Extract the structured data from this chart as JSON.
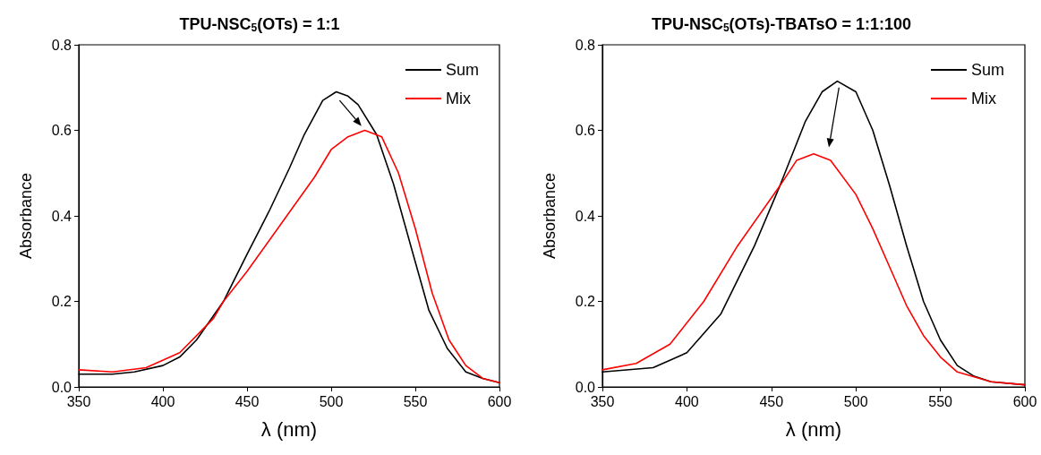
{
  "chart_data": [
    {
      "type": "line",
      "title": "TPU-NSC$_{5}$(OTs) = 1:1",
      "xlabel": "λ (nm)",
      "ylabel": "Absorbance",
      "xlim": [
        350,
        600
      ],
      "xticks": [
        350,
        400,
        450,
        500,
        550,
        600
      ],
      "ylim": [
        0,
        0.8
      ],
      "yticks": [
        {
          "value": 0,
          "label": "0.0"
        },
        0.2,
        0.4,
        0.6,
        0.8
      ],
      "grid": false,
      "legend": "top right",
      "marker": "none",
      "line_style": "solid",
      "series": [
        {
          "name": "Sum",
          "color": "#000000",
          "x": [
            350,
            370,
            383,
            400,
            410,
            420,
            436,
            450,
            463,
            475,
            484,
            495,
            503,
            510,
            516,
            527,
            537,
            548,
            558,
            569,
            580,
            590,
            600
          ],
          "values": [
            0.03,
            0.03,
            0.035,
            0.05,
            0.07,
            0.11,
            0.2,
            0.31,
            0.41,
            0.51,
            0.59,
            0.67,
            0.69,
            0.68,
            0.66,
            0.59,
            0.475,
            0.32,
            0.18,
            0.09,
            0.035,
            0.02,
            0.01
          ]
        },
        {
          "name": "Mix",
          "color": "#ff0000",
          "x": [
            350,
            370,
            390,
            410,
            430,
            436,
            450,
            470,
            490,
            500,
            510,
            520,
            530,
            540,
            550,
            560,
            570,
            580,
            590,
            600
          ],
          "values": [
            0.04,
            0.035,
            0.045,
            0.08,
            0.16,
            0.2,
            0.27,
            0.38,
            0.49,
            0.555,
            0.585,
            0.6,
            0.585,
            0.5,
            0.37,
            0.22,
            0.11,
            0.05,
            0.02,
            0.01
          ]
        }
      ]
    },
    {
      "type": "line",
      "title": "TPU-NSC$_{5}$(OTs)-TBATsO = 1:1:100",
      "xlabel": "λ (nm)",
      "ylabel": "Absorbance",
      "xlim": [
        350,
        600
      ],
      "xticks": [
        350,
        400,
        450,
        500,
        550,
        600
      ],
      "ylim": [
        0,
        0.8
      ],
      "yticks": [
        {
          "value": 0,
          "label": "0.0"
        },
        0.2,
        0.4,
        0.6,
        0.8
      ],
      "grid": false,
      "legend": "top right",
      "marker": "none",
      "line_style": "solid",
      "series": [
        {
          "name": "Sum",
          "color": "#000000",
          "x": [
            350,
            380,
            400,
            420,
            440,
            455,
            470,
            480,
            489,
            500,
            510,
            520,
            530,
            540,
            550,
            560,
            570,
            580,
            600
          ],
          "values": [
            0.035,
            0.045,
            0.08,
            0.17,
            0.33,
            0.47,
            0.62,
            0.69,
            0.715,
            0.69,
            0.6,
            0.47,
            0.33,
            0.2,
            0.11,
            0.05,
            0.025,
            0.012,
            0.005
          ]
        },
        {
          "name": "Mix",
          "color": "#ff0000",
          "x": [
            350,
            370,
            390,
            410,
            430,
            455,
            465,
            475,
            485,
            500,
            510,
            520,
            530,
            540,
            550,
            560,
            580,
            600
          ],
          "values": [
            0.04,
            0.055,
            0.1,
            0.2,
            0.33,
            0.47,
            0.53,
            0.545,
            0.53,
            0.45,
            0.37,
            0.28,
            0.19,
            0.12,
            0.07,
            0.035,
            0.012,
            0.005
          ]
        }
      ]
    }
  ]
}
